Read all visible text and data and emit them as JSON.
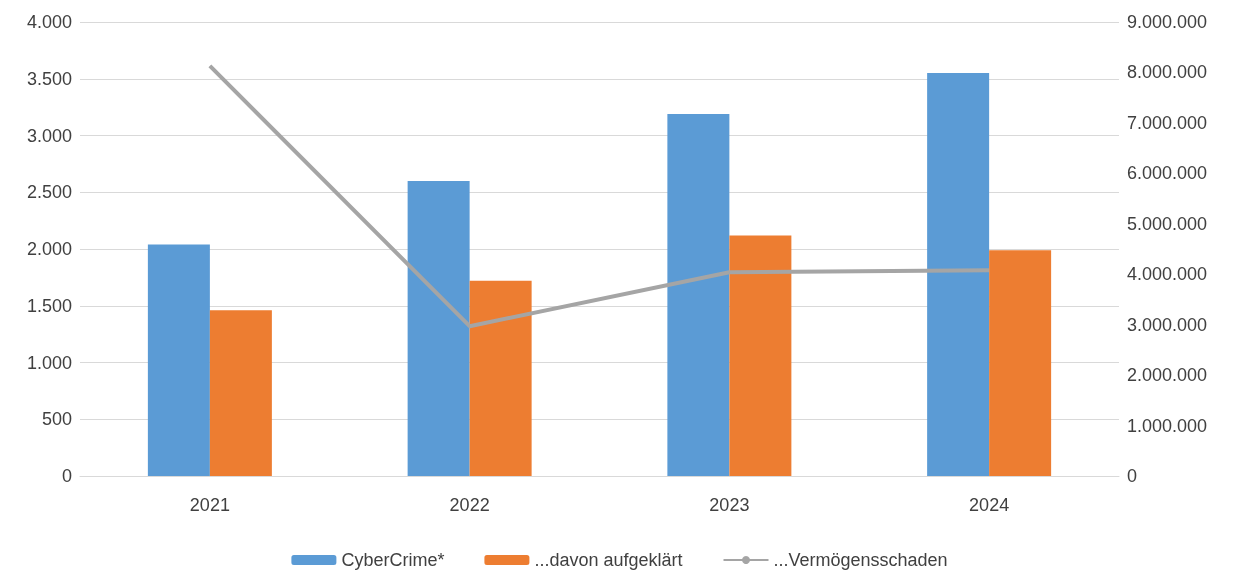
{
  "chart_data": {
    "type": "bar",
    "categories": [
      "2021",
      "2022",
      "2023",
      "2024"
    ],
    "series": [
      {
        "name": "CyberCrime*",
        "color": "#5b9bd5",
        "values": [
          2040,
          2600,
          3190,
          3550
        ]
      },
      {
        "name": "...davon aufgeklärt",
        "color": "#ed7d31",
        "values": [
          1460,
          1720,
          2120,
          1990
        ]
      },
      {
        "name": "...Vermögensschaden",
        "type": "line",
        "axis": "y2",
        "color": "#a5a5a5",
        "values": [
          8130000,
          2970000,
          4040000,
          4080000
        ]
      }
    ],
    "ylim": [
      0,
      4000
    ],
    "yticks": [
      0,
      {
        "value": 500,
        "label": "500"
      },
      {
        "value": 1000,
        "label": "1.000"
      },
      {
        "value": 1500,
        "label": "1.500"
      },
      {
        "value": 2000,
        "label": "2.000"
      },
      {
        "value": 2500,
        "label": "2.500"
      },
      {
        "value": 3000,
        "label": "3.000"
      },
      {
        "value": 3500,
        "label": "3.500"
      },
      {
        "value": 4000,
        "label": "4.000"
      }
    ],
    "y2lim": [
      0,
      9000000
    ],
    "y2ticks": [
      0,
      {
        "value": 1000000,
        "label": "1.000.000"
      },
      {
        "value": 2000000,
        "label": "2.000.000"
      },
      {
        "value": 3000000,
        "label": "3.000.000"
      },
      {
        "value": 4000000,
        "label": "4.000.000"
      },
      {
        "value": 5000000,
        "label": "5.000.000"
      },
      {
        "value": 6000000,
        "label": "6.000.000"
      },
      {
        "value": 7000000,
        "label": "7.000.000"
      },
      {
        "value": 8000000,
        "label": "8.000.000"
      },
      {
        "value": 9000000,
        "label": "9.000.000"
      }
    ],
    "grid": "y",
    "legend": "bottom",
    "marker": "none",
    "line_style": "solid"
  }
}
